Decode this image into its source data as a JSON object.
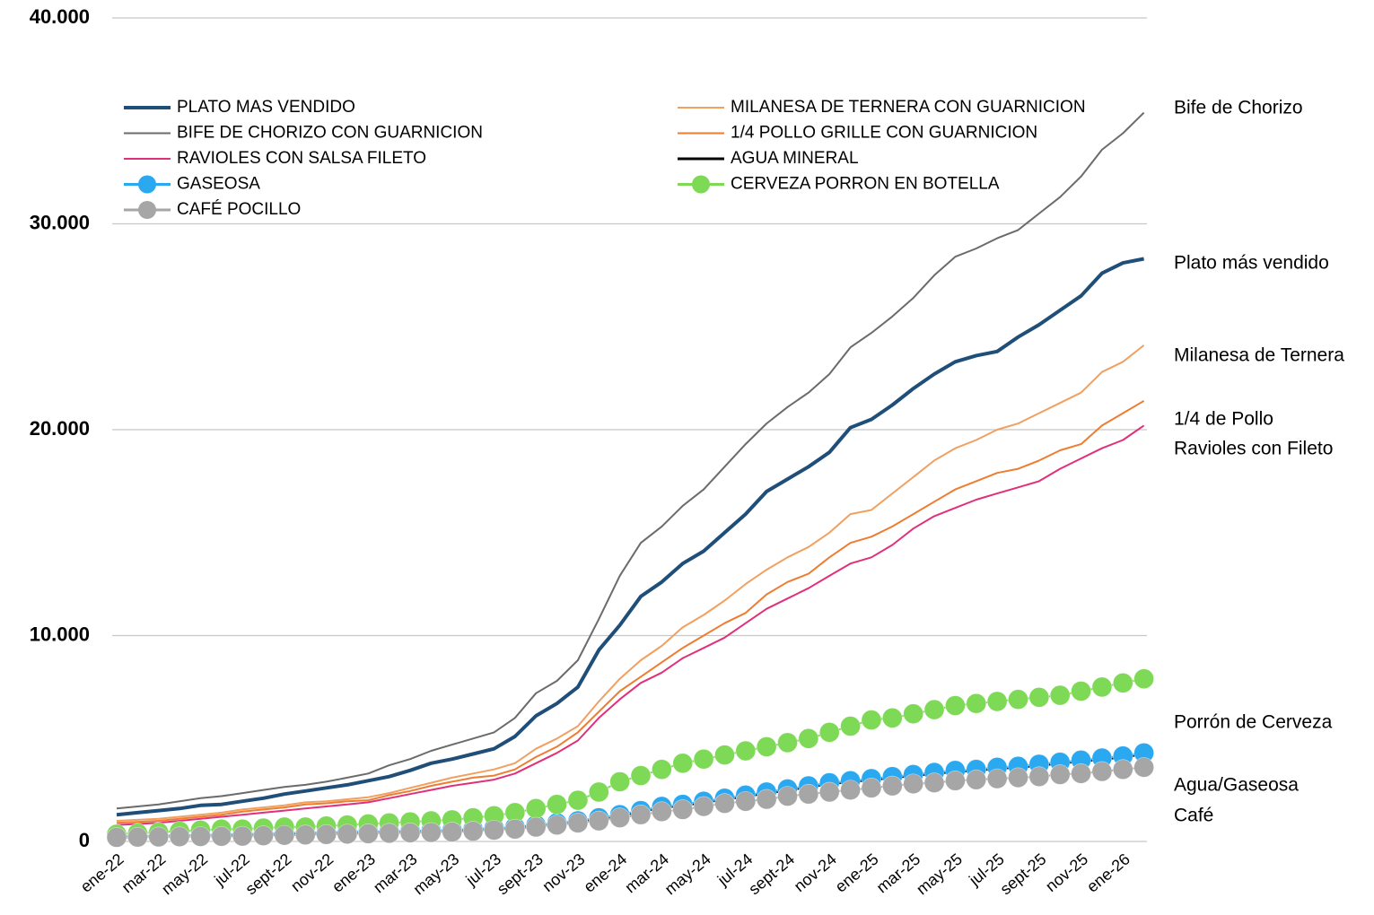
{
  "chart_data": {
    "type": "line",
    "categories": [
      "ene-22",
      null,
      "mar-22",
      null,
      "may-22",
      null,
      "jul-22",
      null,
      "sept-22",
      null,
      "nov-22",
      null,
      "ene-23",
      null,
      "mar-23",
      null,
      "may-23",
      null,
      "jul-23",
      null,
      "sept-23",
      null,
      "nov-23",
      null,
      "ene-24",
      null,
      "mar-24",
      null,
      "may-24",
      null,
      "jul-24",
      null,
      "sept-24",
      null,
      "nov-24",
      null,
      "ene-25",
      null,
      "mar-25",
      null,
      "may-25",
      null,
      "jul-25",
      null,
      "sept-25",
      null,
      "nov-25",
      null,
      "ene-26",
      null
    ],
    "ylim": [
      0,
      40000
    ],
    "yticks": [
      0,
      {
        "value": 10000,
        "label": "10.000"
      },
      {
        "value": 20000,
        "label": "20.000"
      },
      {
        "value": 30000,
        "label": "30.000"
      },
      {
        "value": 40000,
        "label": "40.000"
      }
    ],
    "grid": true,
    "legend": "upper left",
    "series": [
      {
        "name": "PLATO MAS VENDIDO",
        "color": "#1f4e79",
        "width": 4,
        "marker": false,
        "values": [
          1300,
          1400,
          1500,
          1600,
          1750,
          1800,
          1950,
          2100,
          2300,
          2450,
          2600,
          2750,
          2950,
          3150,
          3450,
          3800,
          4000,
          4250,
          4500,
          5100,
          6100,
          6700,
          7500,
          9300,
          10500,
          11900,
          12600,
          13500,
          14100,
          15000,
          15900,
          17000,
          17600,
          18200,
          18900,
          20100,
          20500,
          21200,
          22000,
          22700,
          23300,
          23600,
          23800,
          24500,
          25100,
          25800,
          26500,
          27600,
          28100,
          28300
        ]
      },
      {
        "name": "MILANESA DE TERNERA CON GUARNICION",
        "color": "#f0a060",
        "width": 2,
        "marker": false,
        "values": [
          1000,
          1050,
          1100,
          1200,
          1300,
          1400,
          1550,
          1650,
          1750,
          1900,
          1950,
          2050,
          2150,
          2350,
          2600,
          2850,
          3100,
          3300,
          3500,
          3800,
          4500,
          5000,
          5600,
          6800,
          7900,
          8800,
          9500,
          10400,
          11000,
          11700,
          12500,
          13200,
          13800,
          14300,
          15000,
          15900,
          16100,
          16900,
          17700,
          18500,
          19100,
          19500,
          20000,
          20300,
          20800,
          21300,
          21800,
          22800,
          23300,
          24100
        ]
      },
      {
        "name": "BIFE DE CHORIZO CON GUARNICION",
        "color": "#6b6b6b",
        "width": 2,
        "marker": false,
        "values": [
          1600,
          1700,
          1800,
          1950,
          2100,
          2200,
          2350,
          2500,
          2650,
          2750,
          2900,
          3100,
          3300,
          3700,
          4000,
          4400,
          4700,
          5000,
          5300,
          6000,
          7200,
          7800,
          8800,
          10800,
          12900,
          14500,
          15300,
          16300,
          17100,
          18200,
          19300,
          20300,
          21100,
          21800,
          22700,
          24000,
          24700,
          25500,
          26400,
          27500,
          28400,
          28800,
          29300,
          29700,
          30500,
          31300,
          32300,
          33600,
          34400,
          35400
        ]
      },
      {
        "name": "1/4 POLLO GRILLE CON GUARNICION",
        "color": "#ed7d31",
        "width": 2,
        "marker": false,
        "values": [
          900,
          950,
          1000,
          1100,
          1200,
          1300,
          1450,
          1550,
          1650,
          1800,
          1850,
          1950,
          2000,
          2250,
          2450,
          2700,
          2900,
          3100,
          3200,
          3500,
          4100,
          4600,
          5300,
          6300,
          7300,
          8000,
          8700,
          9400,
          10000,
          10600,
          11100,
          12000,
          12600,
          13000,
          13800,
          14500,
          14800,
          15300,
          15900,
          16500,
          17100,
          17500,
          17900,
          18100,
          18500,
          19000,
          19300,
          20200,
          20800,
          21400
        ]
      },
      {
        "name": "RAVIOLES CON SALSA FILETO",
        "color": "#e0307a",
        "width": 2,
        "marker": false,
        "values": [
          800,
          850,
          900,
          1000,
          1100,
          1200,
          1300,
          1400,
          1500,
          1600,
          1700,
          1800,
          1900,
          2100,
          2300,
          2500,
          2700,
          2850,
          3000,
          3300,
          3800,
          4300,
          4900,
          6000,
          6900,
          7700,
          8200,
          8900,
          9400,
          9900,
          10600,
          11300,
          11800,
          12300,
          12900,
          13500,
          13800,
          14400,
          15200,
          15800,
          16200,
          16600,
          16900,
          17200,
          17500,
          18100,
          18600,
          19100,
          19500,
          20200
        ]
      },
      {
        "name": "AGUA MINERAL",
        "color": "#000000",
        "width": 3,
        "marker": false,
        "values": [
          220,
          230,
          250,
          270,
          290,
          310,
          330,
          350,
          370,
          390,
          410,
          430,
          450,
          470,
          490,
          510,
          530,
          570,
          620,
          670,
          760,
          860,
          950,
          1100,
          1250,
          1450,
          1650,
          1750,
          1900,
          2050,
          2200,
          2350,
          2500,
          2650,
          2800,
          2900,
          3000,
          3100,
          3200,
          3300,
          3400,
          3450,
          3550,
          3600,
          3700,
          3800,
          3900,
          4000,
          4100,
          4250
        ]
      },
      {
        "name": "GASEOSA",
        "color": "#2aa8f0",
        "width": 2,
        "marker": true,
        "values": [
          250,
          260,
          280,
          300,
          320,
          340,
          360,
          380,
          400,
          420,
          440,
          460,
          480,
          500,
          520,
          540,
          560,
          600,
          650,
          700,
          800,
          900,
          1000,
          1150,
          1300,
          1500,
          1700,
          1800,
          1950,
          2100,
          2250,
          2400,
          2550,
          2700,
          2850,
          2950,
          3050,
          3150,
          3250,
          3350,
          3450,
          3500,
          3600,
          3650,
          3750,
          3850,
          3950,
          4050,
          4150,
          4300
        ]
      },
      {
        "name": "CERVEZA PORRON EN BOTELLA",
        "color": "#7ed957",
        "width": 2,
        "marker": true,
        "values": [
          350,
          400,
          450,
          500,
          550,
          600,
          600,
          650,
          700,
          700,
          750,
          800,
          850,
          900,
          950,
          1000,
          1050,
          1150,
          1250,
          1400,
          1600,
          1800,
          2000,
          2400,
          2900,
          3200,
          3500,
          3800,
          4000,
          4200,
          4400,
          4600,
          4800,
          5000,
          5300,
          5600,
          5900,
          6000,
          6200,
          6400,
          6600,
          6700,
          6800,
          6900,
          7000,
          7100,
          7300,
          7500,
          7700,
          7900
        ]
      },
      {
        "name": "CAFÉ POCILLO",
        "color": "#a6a6a6",
        "width": 2,
        "marker": true,
        "values": [
          200,
          210,
          220,
          230,
          240,
          250,
          260,
          280,
          300,
          320,
          340,
          360,
          380,
          400,
          420,
          440,
          460,
          500,
          550,
          600,
          700,
          800,
          900,
          1000,
          1150,
          1300,
          1450,
          1550,
          1700,
          1850,
          1950,
          2050,
          2200,
          2300,
          2400,
          2500,
          2600,
          2700,
          2800,
          2850,
          2950,
          3000,
          3050,
          3100,
          3150,
          3250,
          3300,
          3400,
          3500,
          3600
        ]
      }
    ],
    "annotations": [
      "Bife de Chorizo",
      "Plato más vendido",
      "Milanesa de Ternera",
      "1/4 de Pollo",
      "Ravioles con Fileto",
      "Porrón de Cerveza",
      "Agua/Gaseosa",
      "Café"
    ]
  }
}
